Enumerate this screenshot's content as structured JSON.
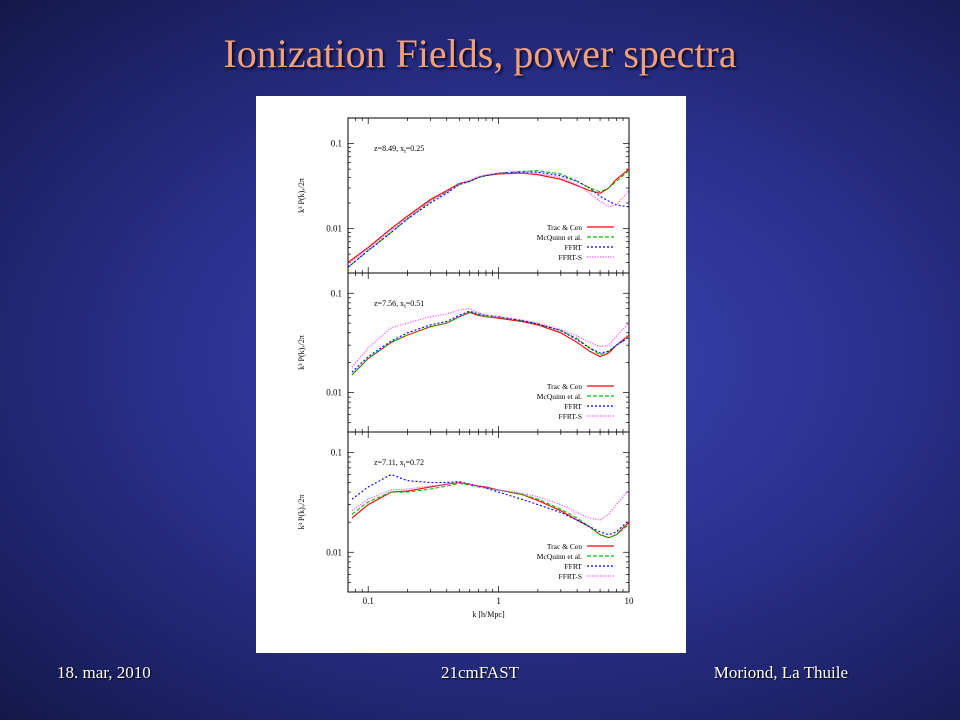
{
  "slide": {
    "title": "Ionization Fields, power spectra",
    "footer_left": "18. mar, 2010",
    "footer_center": "21cmFAST",
    "footer_right": "Moriond, La Thuile"
  },
  "colors": {
    "Trac & Cen": "#ff0000",
    "McQuinn et al.": "#00c000",
    "FFRT": "#0000ff",
    "FFRT-S": "#ff44ff"
  },
  "chart_data": [
    {
      "type": "line",
      "annotation": "z=8.49, x",
      "annotation_sub": "i",
      "annotation_tail": "=0.25",
      "ylabel": "k³ P(k)ₓ/2π",
      "xscale": "log",
      "yscale": "log",
      "xlim": [
        0.07,
        10
      ],
      "ylim": [
        0.003,
        0.2
      ],
      "yticks": [
        {
          "v": 0.1,
          "label": "0.1"
        },
        {
          "v": 0.01,
          "label": "0.01"
        }
      ],
      "x": [
        0.07,
        0.1,
        0.15,
        0.2,
        0.3,
        0.4,
        0.5,
        0.6,
        0.7,
        0.8,
        1,
        1.5,
        2,
        3,
        4,
        5,
        6,
        7,
        8,
        10
      ],
      "series": [
        {
          "name": "Trac & Cen",
          "values": [
            0.004,
            0.006,
            0.01,
            0.014,
            0.022,
            0.028,
            0.034,
            0.036,
            0.04,
            0.042,
            0.044,
            0.045,
            0.043,
            0.038,
            0.032,
            0.028,
            0.026,
            0.03,
            0.038,
            0.05
          ]
        },
        {
          "name": "McQuinn et al.",
          "values": [
            0.0035,
            0.0055,
            0.009,
            0.013,
            0.021,
            0.027,
            0.033,
            0.036,
            0.04,
            0.042,
            0.045,
            0.047,
            0.048,
            0.044,
            0.036,
            0.03,
            0.027,
            0.03,
            0.036,
            0.048
          ]
        },
        {
          "name": "FFRT",
          "values": [
            0.0035,
            0.0055,
            0.009,
            0.013,
            0.02,
            0.026,
            0.033,
            0.036,
            0.04,
            0.042,
            0.045,
            0.046,
            0.046,
            0.042,
            0.036,
            0.03,
            0.024,
            0.021,
            0.019,
            0.018
          ]
        },
        {
          "name": "FFRT-S",
          "values": [
            0.0038,
            0.0058,
            0.0095,
            0.0135,
            0.021,
            0.027,
            0.034,
            0.037,
            0.041,
            0.043,
            0.045,
            0.045,
            0.044,
            0.04,
            0.033,
            0.026,
            0.021,
            0.018,
            0.019,
            0.028
          ]
        }
      ]
    },
    {
      "type": "line",
      "annotation": "z=7.56, x",
      "annotation_sub": "i",
      "annotation_tail": "=0.51",
      "ylabel": "k³ P(k)ₓ/2π",
      "xscale": "log",
      "yscale": "log",
      "xlim": [
        0.07,
        10
      ],
      "ylim": [
        0.004,
        0.16
      ],
      "yticks": [
        {
          "v": 0.1,
          "label": "0.1"
        },
        {
          "v": 0.01,
          "label": "0.01"
        }
      ],
      "x": [
        0.075,
        0.1,
        0.15,
        0.2,
        0.3,
        0.4,
        0.5,
        0.6,
        0.7,
        0.8,
        1,
        1.5,
        2,
        3,
        4,
        5,
        6,
        7,
        8,
        10
      ],
      "series": [
        {
          "name": "Trac & Cen",
          "values": [
            0.015,
            0.022,
            0.032,
            0.038,
            0.046,
            0.05,
            0.058,
            0.064,
            0.06,
            0.058,
            0.056,
            0.052,
            0.048,
            0.04,
            0.032,
            0.026,
            0.023,
            0.025,
            0.03,
            0.038
          ]
        },
        {
          "name": "McQuinn et al.",
          "values": [
            0.015,
            0.022,
            0.032,
            0.038,
            0.046,
            0.05,
            0.058,
            0.065,
            0.061,
            0.058,
            0.057,
            0.053,
            0.049,
            0.042,
            0.035,
            0.028,
            0.024,
            0.026,
            0.03,
            0.036
          ]
        },
        {
          "name": "FFRT",
          "values": [
            0.016,
            0.023,
            0.033,
            0.04,
            0.048,
            0.052,
            0.06,
            0.066,
            0.062,
            0.06,
            0.058,
            0.053,
            0.049,
            0.042,
            0.034,
            0.028,
            0.025,
            0.026,
            0.03,
            0.036
          ]
        },
        {
          "name": "FFRT-S",
          "values": [
            0.018,
            0.028,
            0.045,
            0.05,
            0.058,
            0.062,
            0.068,
            0.07,
            0.064,
            0.06,
            0.058,
            0.054,
            0.05,
            0.043,
            0.037,
            0.032,
            0.029,
            0.03,
            0.037,
            0.05
          ]
        }
      ]
    },
    {
      "type": "line",
      "annotation": "z=7.11, x",
      "annotation_sub": "i",
      "annotation_tail": "=0.72",
      "ylabel": "k³ P(k)ₓ/2π",
      "xscale": "log",
      "yscale": "log",
      "xlim": [
        0.07,
        10
      ],
      "ylim": [
        0.004,
        0.16
      ],
      "yticks": [
        {
          "v": 0.1,
          "label": "0.1"
        },
        {
          "v": 0.01,
          "label": "0.01"
        }
      ],
      "xticks": [
        {
          "v": 0.1,
          "label": "0.1"
        },
        {
          "v": 1,
          "label": "1"
        },
        {
          "v": 10,
          "label": "10"
        }
      ],
      "xlabel": "k [h/Mpc]",
      "x": [
        0.075,
        0.1,
        0.15,
        0.2,
        0.3,
        0.4,
        0.5,
        0.6,
        0.7,
        0.8,
        1,
        1.5,
        2,
        3,
        4,
        5,
        6,
        7,
        8,
        10
      ],
      "series": [
        {
          "name": "Trac & Cen",
          "values": [
            0.022,
            0.03,
            0.04,
            0.041,
            0.045,
            0.048,
            0.05,
            0.048,
            0.046,
            0.045,
            0.042,
            0.038,
            0.033,
            0.026,
            0.021,
            0.018,
            0.015,
            0.014,
            0.015,
            0.02
          ]
        },
        {
          "name": "McQuinn et al.",
          "values": [
            0.024,
            0.032,
            0.04,
            0.04,
            0.043,
            0.046,
            0.049,
            0.047,
            0.045,
            0.044,
            0.042,
            0.038,
            0.034,
            0.027,
            0.022,
            0.018,
            0.015,
            0.014,
            0.015,
            0.019
          ]
        },
        {
          "name": "FFRT",
          "values": [
            0.034,
            0.045,
            0.06,
            0.052,
            0.05,
            0.05,
            0.051,
            0.048,
            0.046,
            0.044,
            0.04,
            0.034,
            0.03,
            0.025,
            0.021,
            0.018,
            0.016,
            0.015,
            0.016,
            0.021
          ]
        },
        {
          "name": "FFRT-S",
          "values": [
            0.026,
            0.034,
            0.042,
            0.043,
            0.046,
            0.048,
            0.05,
            0.048,
            0.046,
            0.044,
            0.042,
            0.039,
            0.036,
            0.03,
            0.025,
            0.022,
            0.021,
            0.024,
            0.03,
            0.042
          ]
        }
      ]
    }
  ]
}
